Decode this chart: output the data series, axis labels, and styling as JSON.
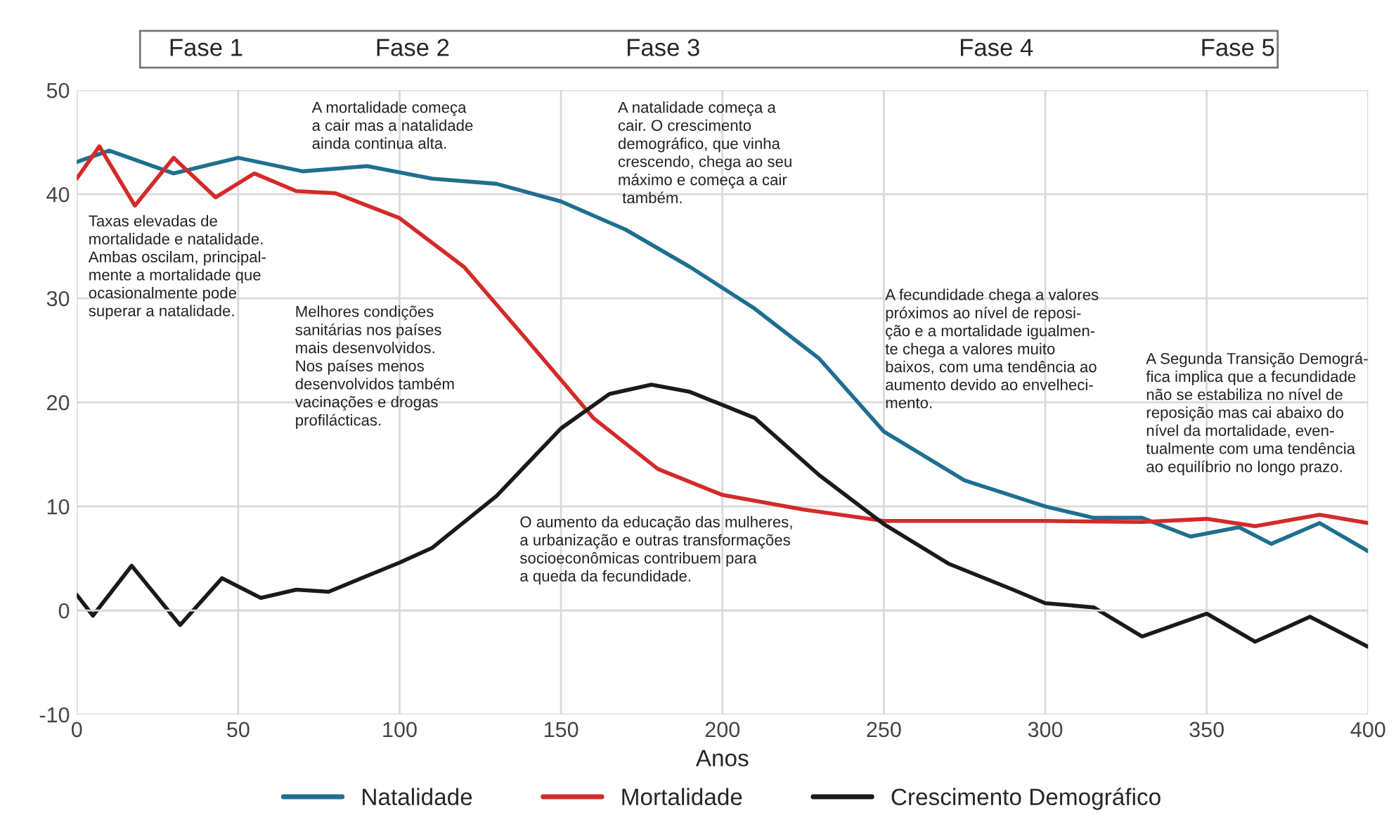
{
  "chart_data": {
    "type": "line",
    "xlabel": "Anos",
    "xlim": [
      0,
      400
    ],
    "ylim": [
      -10,
      50
    ],
    "xticks": [
      0,
      50,
      100,
      150,
      200,
      250,
      300,
      350,
      400
    ],
    "yticks": [
      -10,
      0,
      10,
      20,
      30,
      40,
      50
    ],
    "grid": true,
    "legend": "bottom",
    "marker": "none",
    "line_style": "solid",
    "series": [
      {
        "name": "Natalidade",
        "color": "#1f6f8f",
        "x": [
          0,
          10,
          30,
          50,
          70,
          90,
          110,
          130,
          150,
          170,
          190,
          210,
          230,
          250,
          275,
          300,
          315,
          330,
          345,
          360,
          370,
          385,
          400
        ],
        "values": [
          43.1,
          44.2,
          42.0,
          43.5,
          42.2,
          42.7,
          41.5,
          41.0,
          39.3,
          36.6,
          33.0,
          29.0,
          24.2,
          17.2,
          12.5,
          10.0,
          8.9,
          8.9,
          7.1,
          8.0,
          6.4,
          8.4,
          5.7
        ]
      },
      {
        "name": "Mortalidade",
        "color": "#d42a2a",
        "x": [
          0,
          7,
          18,
          30,
          43,
          55,
          68,
          80,
          100,
          120,
          140,
          160,
          180,
          200,
          225,
          250,
          300,
          330,
          350,
          365,
          385,
          400
        ],
        "values": [
          41.5,
          44.6,
          38.9,
          43.5,
          39.7,
          42.0,
          40.3,
          40.1,
          37.7,
          33.0,
          25.8,
          18.5,
          13.6,
          11.1,
          9.7,
          8.6,
          8.6,
          8.5,
          8.8,
          8.1,
          9.2,
          8.4
        ]
      },
      {
        "name": "Crescimento Demográfico",
        "color": "#1a1a1a",
        "x": [
          0,
          5,
          17,
          32,
          45,
          57,
          68,
          78,
          100,
          110,
          130,
          150,
          165,
          178,
          190,
          210,
          230,
          250,
          270,
          290,
          300,
          315,
          330,
          350,
          365,
          382,
          400
        ],
        "values": [
          1.5,
          -0.5,
          4.3,
          -1.4,
          3.1,
          1.2,
          2.0,
          1.8,
          4.6,
          6.0,
          11.0,
          17.5,
          20.8,
          21.7,
          21.0,
          18.5,
          13.0,
          8.3,
          4.5,
          2.0,
          0.7,
          0.3,
          -2.5,
          -0.3,
          -3.0,
          -0.6,
          -3.5
        ]
      }
    ],
    "annotations": [
      "Fase 1",
      "Fase 2",
      "Fase 3",
      "Fase 4",
      "Fase 5",
      "Taxas elevadas de\nmortalidade e natalidade.\nAmbas oscilam, principal-\nmente a mortalidade que\nocasionalmente pode\nsuperar a natalidade.",
      "A mortalidade começa\na cair mas a natalidade\nainda continua alta.",
      "Melhores condições\nsanitárias nos países\nmais desenvolvidos.\nNos países menos\ndesenvolvidos também\nvacinações e drogas\nprofilácticas.",
      "A natalidade começa a\ncair. O crescimento\ndemográfico, que vinha\ncrescendo, chega ao seu\nmáximo e começa a cair\n também.",
      "O aumento da educação das mulheres,\na urbanização e outras transformações\nsocioeconômicas contribuem para\na queda da fecundidade.",
      "A fecundidade chega a valores\npróximos ao nível de reposi-\nção e a mortalidade igualmen-\nte chega a valores muito\nbaixos, com uma tendência ao\naumento devido ao envelheci-\nmento.",
      "A Segunda Transição Demográ-\nfica implica que a fecundidade\nnão se estabiliza no nível de\nreposição mas cai abaixo do\nnível da mortalidade, even-\ntualmente com uma tendência\nao equilíbrio no longo prazo."
    ]
  }
}
